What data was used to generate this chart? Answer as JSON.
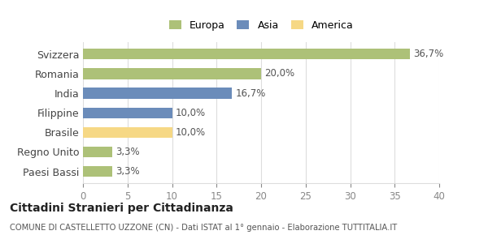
{
  "categories": [
    "Paesi Bassi",
    "Regno Unito",
    "Brasile",
    "Filippine",
    "India",
    "Romania",
    "Svizzera"
  ],
  "values": [
    3.3,
    3.3,
    10.0,
    10.0,
    16.7,
    20.0,
    36.7
  ],
  "labels": [
    "3,3%",
    "3,3%",
    "10,0%",
    "10,0%",
    "16,7%",
    "20,0%",
    "36,7%"
  ],
  "colors": [
    "#adc178",
    "#adc178",
    "#f6d885",
    "#6b8cba",
    "#6b8cba",
    "#adc178",
    "#adc178"
  ],
  "legend": [
    {
      "label": "Europa",
      "color": "#adc178"
    },
    {
      "label": "Asia",
      "color": "#6b8cba"
    },
    {
      "label": "America",
      "color": "#f6d885"
    }
  ],
  "xlim": [
    0,
    40
  ],
  "xticks": [
    0,
    5,
    10,
    15,
    20,
    25,
    30,
    35,
    40
  ],
  "title_main": "Cittadini Stranieri per Cittadinanza",
  "title_sub": "COMUNE DI CASTELLETTO UZZONE (CN) - Dati ISTAT al 1° gennaio - Elaborazione TUTTITALIA.IT",
  "background_color": "#ffffff",
  "grid_color": "#dddddd",
  "bar_height": 0.55
}
